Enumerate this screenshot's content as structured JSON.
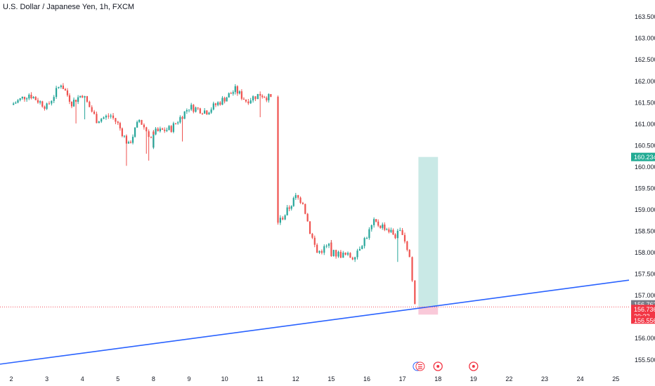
{
  "title": "U.S. Dollar / Japanese Yen, 1h, FXCM",
  "colors": {
    "up": "#26a69a",
    "down": "#ef5350",
    "trendline": "#2962ff",
    "profit_zone": "#b2dfdb",
    "loss_zone": "#f8bbd0",
    "target_badge": "#22ab94",
    "current_badge": "#787b86",
    "price_badge": "#f23645"
  },
  "chart_data": {
    "type": "candlestick",
    "title": "U.S. Dollar / Japanese Yen, 1h, FXCM",
    "x_ticks": [
      "2",
      "3",
      "4",
      "5",
      "8",
      "9",
      "10",
      "11",
      "12",
      "15",
      "16",
      "17",
      "18",
      "19",
      "22",
      "23",
      "24",
      "25"
    ],
    "y_ticks": [
      155.5,
      156.0,
      156.5,
      157.0,
      157.5,
      158.0,
      158.5,
      159.0,
      159.5,
      160.0,
      160.5,
      161.0,
      161.5,
      162.0,
      162.5,
      163.0,
      163.5
    ],
    "y_tick_labels": [
      "155.500",
      "156.000",
      "156.500",
      "157.000",
      "157.500",
      "158.000",
      "158.500",
      "159.000",
      "159.500",
      "160.000",
      "160.500",
      "161.000",
      "161.500",
      "162.000",
      "162.500",
      "163.000",
      "163.500"
    ],
    "ylim": [
      155.3,
      163.65
    ],
    "price_series_close": [
      {
        "day": 2.0,
        "close": 161.45
      },
      {
        "day": 2.5,
        "close": 161.7
      },
      {
        "day": 3.0,
        "close": 161.4
      },
      {
        "day": 3.4,
        "close": 161.95
      },
      {
        "day": 3.7,
        "close": 161.5
      },
      {
        "day": 4.0,
        "close": 161.7
      },
      {
        "day": 4.4,
        "close": 161.1
      },
      {
        "day": 4.8,
        "close": 161.2
      },
      {
        "day": 5.0,
        "close": 161.0
      },
      {
        "day": 5.3,
        "close": 160.5
      },
      {
        "day": 5.6,
        "close": 161.1
      },
      {
        "day": 6.2,
        "close": 160.6
      },
      {
        "day": 6.5,
        "close": 160.4
      },
      {
        "day": 7.0,
        "close": 160.7
      },
      {
        "day": 7.6,
        "close": 160.8
      },
      {
        "day": 8.5,
        "close": 160.9
      },
      {
        "day": 9.0,
        "close": 161.4
      },
      {
        "day": 9.5,
        "close": 161.3
      },
      {
        "day": 10.0,
        "close": 161.6
      },
      {
        "day": 10.3,
        "close": 161.8
      },
      {
        "day": 10.6,
        "close": 161.55
      },
      {
        "day": 11.0,
        "close": 161.7
      },
      {
        "day": 11.3,
        "close": 161.6
      },
      {
        "day": 11.5,
        "close": 158.7
      },
      {
        "day": 11.7,
        "close": 158.9
      },
      {
        "day": 12.0,
        "close": 159.3
      },
      {
        "day": 12.2,
        "close": 159.2
      },
      {
        "day": 12.4,
        "close": 158.5
      },
      {
        "day": 12.6,
        "close": 158.0
      },
      {
        "day": 13.0,
        "close": 158.2
      },
      {
        "day": 15.0,
        "close": 158.0
      },
      {
        "day": 15.6,
        "close": 157.9
      },
      {
        "day": 16.0,
        "close": 158.4
      },
      {
        "day": 16.2,
        "close": 158.7
      },
      {
        "day": 16.5,
        "close": 158.6
      },
      {
        "day": 16.8,
        "close": 158.4
      },
      {
        "day": 17.0,
        "close": 158.5
      },
      {
        "day": 17.2,
        "close": 157.9
      },
      {
        "day": 17.35,
        "close": 156.8
      }
    ],
    "trendline": {
      "start": {
        "day": 1.7,
        "price": 155.4
      },
      "end": {
        "day": 25.4,
        "price": 157.36
      }
    },
    "position": {
      "start_day": 17.45,
      "end_day": 18.0,
      "entry": 156.736,
      "target": 160.234,
      "stop": 156.556
    },
    "price_labels": {
      "target": "160.234",
      "current": "156.762",
      "price": "156.736",
      "countdown": "39:22",
      "stop": "156.556"
    },
    "events": [
      {
        "day": 17.5,
        "icon": "us-flag-icon"
      },
      {
        "day": 18.0,
        "icon": "event-marker-icon"
      },
      {
        "day": 19.0,
        "icon": "event-marker-icon"
      }
    ]
  }
}
